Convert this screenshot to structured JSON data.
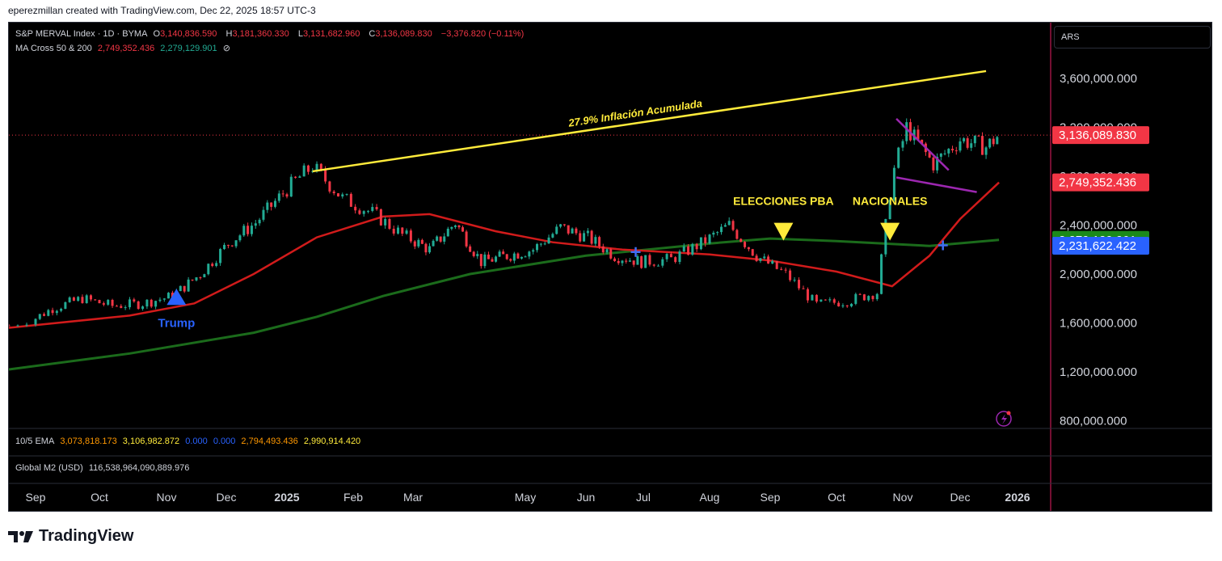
{
  "header": {
    "credit": "eperezmillan created with TradingView.com, Dec 22, 2025 18:57 UTC-3"
  },
  "symbol": {
    "name": "S&P MERVAL Index · 1D · BYMA",
    "o_label": "O",
    "o": "3,140,836.590",
    "h_label": "H",
    "h": "3,181,360.330",
    "l_label": "L",
    "l": "3,131,682.960",
    "c_label": "C",
    "c": "3,136,089.830",
    "change": "−3,376.820 (−0.11%)"
  },
  "ma_cross": {
    "name": "MA Cross 50 & 200",
    "v1": "2,749,352.436",
    "v2": "2,279,129.901",
    "icon": "hidden-eye-icon"
  },
  "ema": {
    "name": "10/5 EMA",
    "v1": "3,073,818.173",
    "v2": "3,106,982.872",
    "v3": "0.000",
    "v4": "0.000",
    "v5": "2,794,493.436",
    "v6": "2,990,914.420"
  },
  "m2": {
    "name": "Global M2 (USD)",
    "value": "116,538,964,090,889.976"
  },
  "currency": "ARS",
  "brand": {
    "name": "TradingView"
  },
  "colors": {
    "up": "#22ab94",
    "down": "#f23645",
    "ma50": "#d11b1b",
    "ma200": "#1b6b1b",
    "trend": "#ffeb3b",
    "wedge": "#9c27b0",
    "marker": "#2962ff"
  },
  "chart_data": {
    "type": "candlestick",
    "x_axis_labels": [
      "Sep",
      "Oct",
      "Nov",
      "Dec",
      "2025",
      "Feb",
      "Mar",
      "May",
      "Jun",
      "Jul",
      "Aug",
      "Sep",
      "Oct",
      "Nov",
      "Dec",
      "2026"
    ],
    "y_ticks": [
      3600000,
      3200000,
      2800000,
      2400000,
      2000000,
      1600000,
      1200000,
      800000
    ],
    "y_tick_labels": [
      "3,600,000.000",
      "3,200,000.000",
      "2,800,000.000",
      "2,400,000.000",
      "2,000,000.000",
      "1,600,000.000",
      "1,200,000.000",
      "800,000.000"
    ],
    "price_badges": [
      {
        "label": "3,136,089.830",
        "value": 3136089.83,
        "color": "#f23645"
      },
      {
        "label": "2,749,352.436",
        "value": 2749352.436,
        "color": "#f23645"
      },
      {
        "label": "2,279,129.901",
        "value": 2279129.901,
        "color": "#1b8a1b"
      },
      {
        "label": "2,231,622.422",
        "value": 2231622.422,
        "color": "#2962ff"
      }
    ],
    "close_series": [
      [
        "2024-08-26",
        1580000
      ],
      [
        "2024-09-09",
        1720000
      ],
      [
        "2024-09-23",
        1800000
      ],
      [
        "2024-10-07",
        1740000
      ],
      [
        "2024-10-21",
        1760000
      ],
      [
        "2024-11-04",
        1820000
      ],
      [
        "2024-11-18",
        2000000
      ],
      [
        "2024-12-02",
        2250000
      ],
      [
        "2024-12-16",
        2420000
      ],
      [
        "2025-01-06",
        2780000
      ],
      [
        "2025-01-13",
        2880000
      ],
      [
        "2025-01-27",
        2620000
      ],
      [
        "2025-02-10",
        2500000
      ],
      [
        "2025-02-24",
        2320000
      ],
      [
        "2025-03-10",
        2200000
      ],
      [
        "2025-03-24",
        2420000
      ],
      [
        "2025-04-07",
        2100000
      ],
      [
        "2025-04-21",
        2150000
      ],
      [
        "2025-05-05",
        2200000
      ],
      [
        "2025-05-19",
        2380000
      ],
      [
        "2025-06-02",
        2300000
      ],
      [
        "2025-06-16",
        2150000
      ],
      [
        "2025-06-30",
        2100000
      ],
      [
        "2025-07-14",
        2120000
      ],
      [
        "2025-07-28",
        2250000
      ],
      [
        "2025-08-11",
        2400000
      ],
      [
        "2025-08-25",
        2150000
      ],
      [
        "2025-09-08",
        2000000
      ],
      [
        "2025-09-22",
        1750000
      ],
      [
        "2025-10-06",
        1780000
      ],
      [
        "2025-10-20",
        1850000
      ],
      [
        "2025-10-27",
        2800000
      ],
      [
        "2025-11-03",
        3200000
      ],
      [
        "2025-11-17",
        2900000
      ],
      [
        "2025-12-01",
        3100000
      ],
      [
        "2025-12-15",
        3040000
      ],
      [
        "2025-12-22",
        3136090
      ]
    ],
    "ma50_series": [
      [
        "2024-08-26",
        1560000
      ],
      [
        "2024-10-15",
        1660000
      ],
      [
        "2024-11-15",
        1760000
      ],
      [
        "2024-12-15",
        2000000
      ],
      [
        "2025-01-15",
        2300000
      ],
      [
        "2025-02-15",
        2470000
      ],
      [
        "2025-03-10",
        2490000
      ],
      [
        "2025-04-15",
        2350000
      ],
      [
        "2025-05-15",
        2260000
      ],
      [
        "2025-06-20",
        2200000
      ],
      [
        "2025-08-01",
        2160000
      ],
      [
        "2025-09-01",
        2110000
      ],
      [
        "2025-10-01",
        2020000
      ],
      [
        "2025-10-27",
        1900000
      ],
      [
        "2025-11-15",
        2150000
      ],
      [
        "2025-12-01",
        2450000
      ],
      [
        "2025-12-22",
        2749352
      ]
    ],
    "ma200_series": [
      [
        "2024-08-26",
        1220000
      ],
      [
        "2024-10-15",
        1350000
      ],
      [
        "2024-12-15",
        1520000
      ],
      [
        "2025-01-15",
        1650000
      ],
      [
        "2025-02-15",
        1820000
      ],
      [
        "2025-04-01",
        2000000
      ],
      [
        "2025-06-01",
        2150000
      ],
      [
        "2025-08-01",
        2250000
      ],
      [
        "2025-09-01",
        2290000
      ],
      [
        "2025-10-01",
        2270000
      ],
      [
        "2025-11-15",
        2230000
      ],
      [
        "2025-12-22",
        2279130
      ]
    ],
    "annotations": [
      {
        "text": "Trump",
        "date": "2024-11-06",
        "value": 1800000,
        "kind": "cross-up"
      },
      {
        "text": "ELECCIONES PBA",
        "date": "2025-09-07",
        "value": 2300000,
        "kind": "event"
      },
      {
        "text": "NACIONALES",
        "date": "2025-10-26",
        "value": 2300000,
        "kind": "event"
      },
      {
        "text": "27.9% Inflación Acumulada",
        "kind": "trendline"
      }
    ],
    "trendline": [
      [
        "2025-01-13",
        2840000
      ],
      [
        "2025-12-15",
        3660000
      ]
    ],
    "wedge_upper": [
      [
        "2025-10-29",
        3270000
      ],
      [
        "2025-11-25",
        2850000
      ]
    ],
    "wedge_lower": [
      [
        "2025-10-29",
        2790000
      ],
      [
        "2025-12-10",
        2670000
      ]
    ]
  }
}
